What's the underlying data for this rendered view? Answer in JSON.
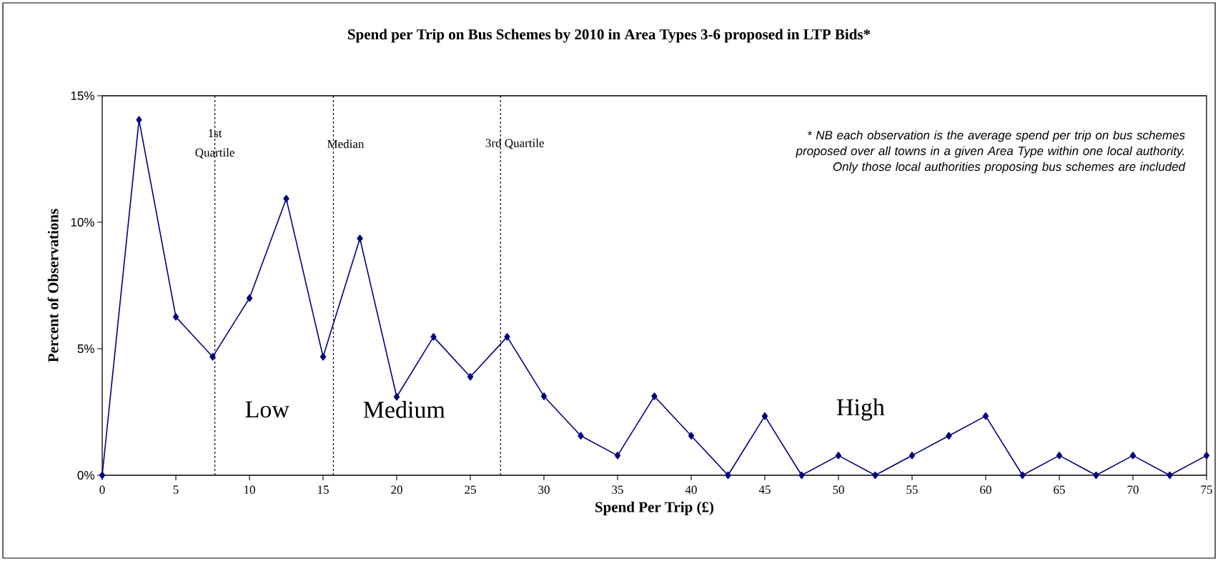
{
  "chart_data": {
    "type": "line",
    "title": "Spend per Trip on Bus Schemes by 2010 in Area Types 3-6 proposed in LTP Bids*",
    "xlabel": "Spend Per Trip (£)",
    "ylabel": "Percent of Observations",
    "x": [
      0,
      2.5,
      5,
      7.5,
      10,
      12.5,
      15,
      17.5,
      20,
      22.5,
      25,
      27.5,
      30,
      32.5,
      35,
      37.5,
      40,
      42.5,
      45,
      47.5,
      50,
      52.5,
      55,
      57.5,
      60,
      62.5,
      65,
      67.5,
      70,
      72.5,
      75
    ],
    "series": [
      {
        "color": "#000080",
        "values": [
          0,
          14.05,
          6.26,
          4.68,
          7.0,
          10.93,
          4.68,
          9.36,
          3.1,
          5.47,
          3.89,
          5.47,
          3.12,
          1.56,
          0.78,
          3.12,
          1.56,
          0,
          2.34,
          0,
          0.78,
          0,
          0.78,
          1.56,
          2.34,
          0,
          0.78,
          0,
          0.78,
          0,
          0.78
        ]
      }
    ],
    "xlim": [
      0,
      75
    ],
    "xticks": [
      0,
      5,
      10,
      15,
      20,
      25,
      30,
      35,
      40,
      45,
      50,
      55,
      60,
      65,
      70,
      75
    ],
    "ylim": [
      0,
      15
    ],
    "yticks": [
      {
        "value": 0,
        "label": "0%"
      },
      {
        "value": 5,
        "label": "5%"
      },
      {
        "value": 10,
        "label": "10%"
      },
      {
        "value": 15,
        "label": "15%"
      }
    ],
    "ref_lines": [
      {
        "axis": "x",
        "value": 7.65,
        "label": "1st Quartile",
        "color": "#000000",
        "line_style": "dashed"
      },
      {
        "axis": "x",
        "value": 15.7,
        "label": "Median",
        "color": "#000000",
        "line_style": "dashed"
      },
      {
        "axis": "x",
        "value": 27.05,
        "label": "3rd Quartile",
        "color": "#000000",
        "line_style": "dashed"
      }
    ],
    "annotations": [
      "Low",
      "Medium",
      "High",
      "* NB each observation is the average spend per trip on bus schemes proposed over all towns in a given Area Type within one local authority. Only those local authorities proposing bus schemes are included"
    ],
    "marker": "diamond",
    "line_style": "solid",
    "grid": false
  }
}
